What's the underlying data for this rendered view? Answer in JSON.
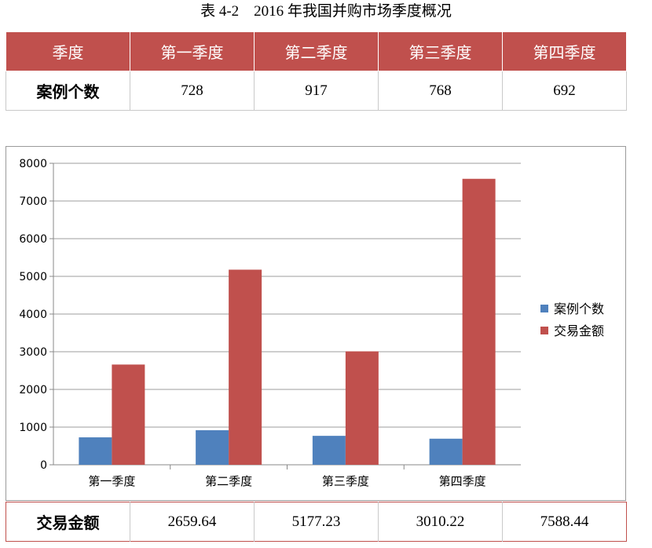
{
  "caption": "表 4-2　2016 年我国并购市场季度概况",
  "table_top": {
    "headers": [
      "季度",
      "第一季度",
      "第二季度",
      "第三季度",
      "第四季度"
    ],
    "row_label": "案例个数",
    "row_values": [
      "728",
      "917",
      "768",
      "692"
    ]
  },
  "table_bottom": {
    "row_label": "交易金额",
    "row_values": [
      "2659.64",
      "5177.23",
      "3010.22",
      "7588.44"
    ]
  },
  "colors": {
    "series1": "#4f81bd",
    "series2": "#c0504d",
    "header_bg": "#c0504d"
  },
  "chart_data": {
    "type": "bar",
    "categories": [
      "第一季度",
      "第二季度",
      "第三季度",
      "第四季度"
    ],
    "series": [
      {
        "name": "案例个数",
        "values": [
          728,
          917,
          768,
          692
        ]
      },
      {
        "name": "交易金额",
        "values": [
          2659.64,
          5177.23,
          3010.22,
          7588.44
        ]
      }
    ],
    "ylim": [
      0,
      8000
    ],
    "yticks": [
      "0",
      "1000",
      "2000",
      "3000",
      "4000",
      "5000",
      "6000",
      "7000",
      "8000"
    ],
    "grid": true,
    "legend_position": "right"
  }
}
